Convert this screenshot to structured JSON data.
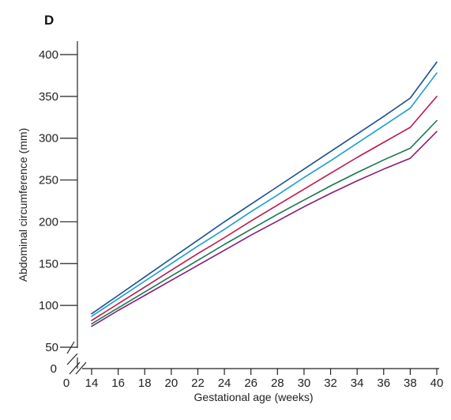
{
  "panel_label": "D",
  "colors": {
    "axis": "#222222",
    "series": [
      "#1b4f8f",
      "#1a9fc9",
      "#c0174d",
      "#167a4c",
      "#8a1a7a"
    ]
  },
  "chart_data": {
    "type": "line",
    "title": "",
    "xlabel": "Gestational age (weeks)",
    "ylabel": "Abdominal circumference (mm)",
    "xlim": [
      0,
      40
    ],
    "ylim": [
      0,
      400
    ],
    "x_ticks": [
      "0",
      "14",
      "16",
      "18",
      "20",
      "22",
      "24",
      "26",
      "28",
      "30",
      "32",
      "34",
      "36",
      "38",
      "40"
    ],
    "y_ticks": [
      "0",
      "50",
      "100",
      "150",
      "200",
      "250",
      "300",
      "350",
      "400"
    ],
    "axis_breaks": {
      "x": [
        0,
        14
      ],
      "y": [
        0,
        50
      ]
    },
    "grid": false,
    "legend": "none",
    "x": [
      14,
      16,
      18,
      20,
      22,
      24,
      26,
      28,
      30,
      32,
      34,
      36,
      38,
      40
    ],
    "series": [
      {
        "values": [
          90,
          112,
          134,
          156,
          178,
          200,
          221,
          242,
          263,
          284,
          305,
          326,
          348,
          391
        ]
      },
      {
        "values": [
          87,
          108,
          129,
          150,
          171,
          191,
          212,
          232,
          253,
          273,
          294,
          315,
          336,
          378
        ]
      },
      {
        "values": [
          82,
          102,
          122,
          142,
          162,
          181,
          201,
          220,
          239,
          258,
          277,
          295,
          313,
          350
        ]
      },
      {
        "values": [
          78,
          97,
          116,
          135,
          154,
          173,
          191,
          209,
          226,
          243,
          259,
          274,
          288,
          321
        ]
      },
      {
        "values": [
          75,
          94,
          112,
          130,
          148,
          166,
          184,
          201,
          218,
          234,
          249,
          263,
          276,
          308
        ]
      }
    ]
  }
}
